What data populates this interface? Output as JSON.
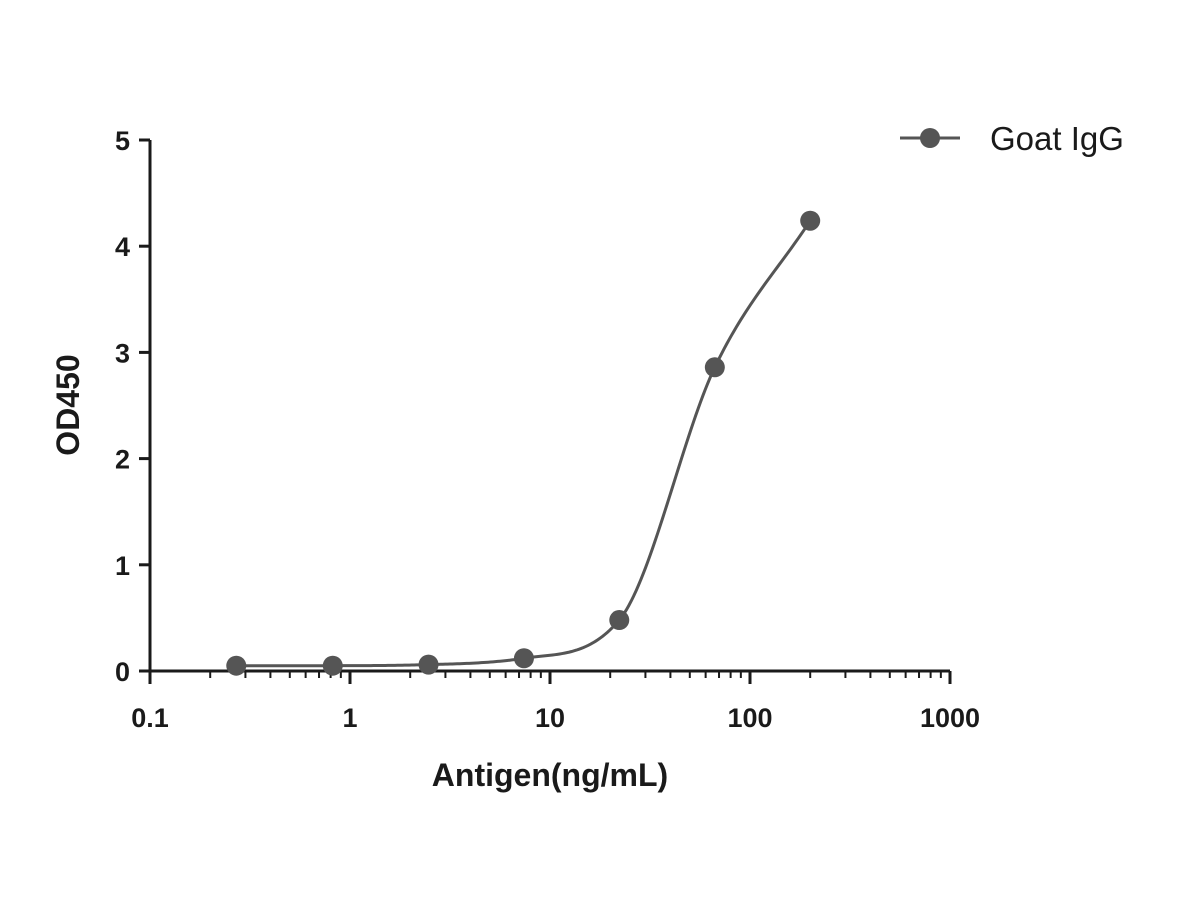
{
  "chart_data": {
    "type": "scatter",
    "title": "",
    "xlabel": "Antigen(ng/mL)",
    "ylabel": "OD450",
    "x_scale": "log",
    "xlim": [
      0.1,
      1000
    ],
    "ylim": [
      0,
      5
    ],
    "x_ticks": [
      0.1,
      1,
      10,
      100,
      1000
    ],
    "x_tick_labels": [
      "0.1",
      "1",
      "10",
      "100",
      "1000"
    ],
    "y_ticks": [
      0,
      1,
      2,
      3,
      4,
      5
    ],
    "y_tick_labels": [
      "0",
      "1",
      "2",
      "3",
      "4",
      "5"
    ],
    "grid": false,
    "legend_position": "top-right",
    "series": [
      {
        "name": "Goat IgG",
        "color": "#555555",
        "marker": "circle",
        "fit_line": "sigmoidal",
        "x": [
          0.27,
          0.82,
          2.47,
          7.41,
          22.2,
          66.7,
          200
        ],
        "y": [
          0.05,
          0.05,
          0.06,
          0.12,
          0.48,
          2.86,
          4.24
        ]
      }
    ]
  }
}
